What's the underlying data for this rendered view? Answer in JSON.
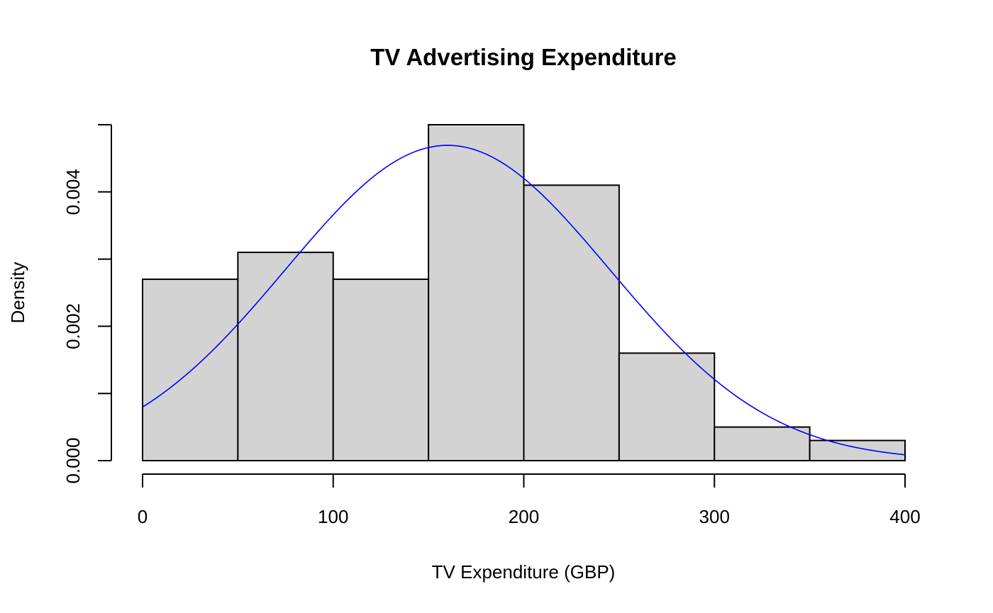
{
  "chart_data": {
    "type": "bar",
    "subtype": "histogram",
    "title": "TV Advertising Expenditure",
    "xlabel": "TV Expenditure (GBP)",
    "ylabel": "Density",
    "xlim": [
      0,
      400
    ],
    "ylim": [
      0,
      0.005
    ],
    "x_ticks": [
      0,
      100,
      200,
      300,
      400
    ],
    "x_tick_labels": [
      "0",
      "100",
      "200",
      "300",
      "400"
    ],
    "y_ticks": [
      0,
      0.001,
      0.002,
      0.003,
      0.004,
      0.005
    ],
    "y_tick_labels": [
      "0.000",
      "",
      "0.002",
      "",
      "0.004",
      ""
    ],
    "bins": [
      {
        "from": 0,
        "to": 50,
        "density": 0.0027
      },
      {
        "from": 50,
        "to": 100,
        "density": 0.0031
      },
      {
        "from": 100,
        "to": 150,
        "density": 0.0027
      },
      {
        "from": 150,
        "to": 200,
        "density": 0.005
      },
      {
        "from": 200,
        "to": 250,
        "density": 0.0041
      },
      {
        "from": 250,
        "to": 300,
        "density": 0.0016
      },
      {
        "from": 300,
        "to": 350,
        "density": 0.0005
      },
      {
        "from": 350,
        "to": 400,
        "density": 0.0003
      }
    ],
    "curve": {
      "type": "normal_density",
      "mean": 160,
      "sd": 85,
      "x_range": [
        0,
        400
      ]
    },
    "grid": false,
    "colors": {
      "bar_fill": "#d3d3d3",
      "bar_stroke": "#000000",
      "curve": "#0000ff",
      "axis": "#000000",
      "background": "#ffffff"
    }
  }
}
